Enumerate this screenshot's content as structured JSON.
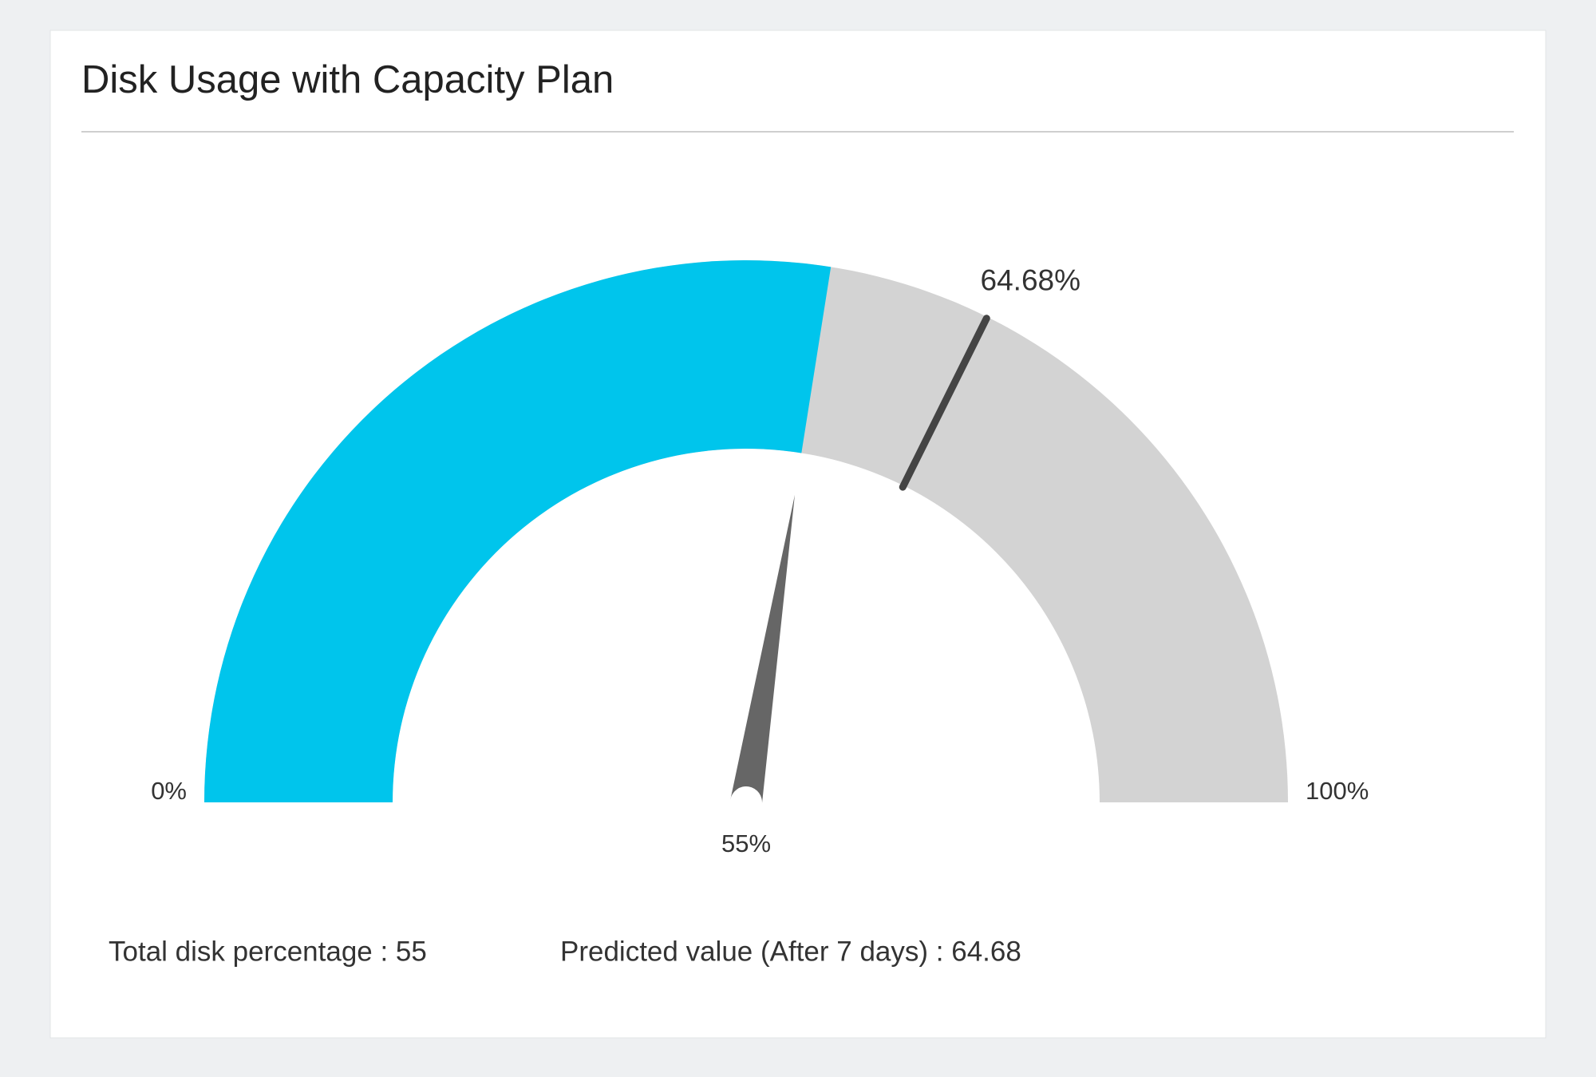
{
  "chart_data": {
    "type": "gauge",
    "title": "Disk Usage with Capacity Plan",
    "value": 55,
    "value_label": "55%",
    "predicted": 64.68,
    "predicted_label": "64.68%",
    "ticks": [
      {
        "value": 0,
        "label": "0%"
      },
      {
        "value": 100,
        "label": "100%"
      }
    ],
    "color": "#00c5ec",
    "track_color": "#d3d3d3",
    "needle_color": "#666666",
    "marker_color": "#444444"
  },
  "stats": [
    "Total disk percentage : 55",
    "Predicted value (After 7 days) : 64.68"
  ]
}
